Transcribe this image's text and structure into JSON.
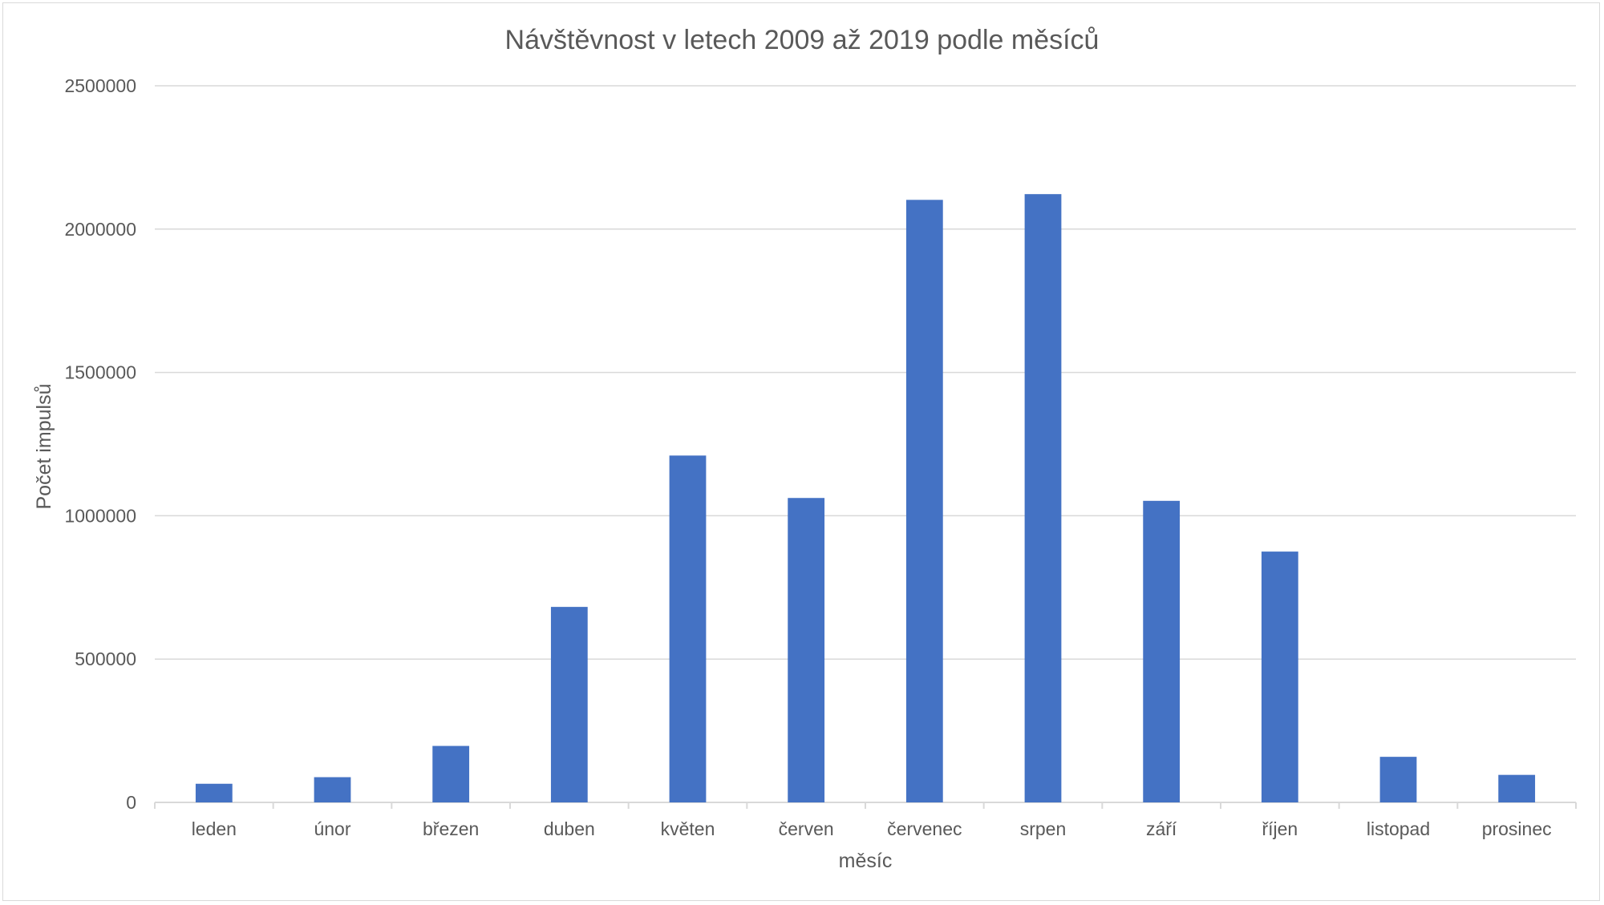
{
  "chart_data": {
    "type": "bar",
    "title": "Návštěvnost v letech 2009 až 2019 podle měsíců",
    "xlabel": "měsíc",
    "ylabel": "Počet impulsů",
    "categories": [
      "leden",
      "únor",
      "březen",
      "duben",
      "květen",
      "červen",
      "červenec",
      "srpen",
      "září",
      "říjen",
      "listopad",
      "prosinec"
    ],
    "values": [
      65000,
      88000,
      197000,
      682000,
      1210000,
      1062000,
      2102000,
      2122000,
      1052000,
      875000,
      159000,
      96000
    ],
    "ylim": [
      0,
      2500000
    ],
    "yticks": [
      "0",
      "500000",
      "1000000",
      "1500000",
      "2000000",
      "2500000"
    ],
    "bar_color": "#4472c4",
    "grid": true,
    "legend": "none"
  }
}
